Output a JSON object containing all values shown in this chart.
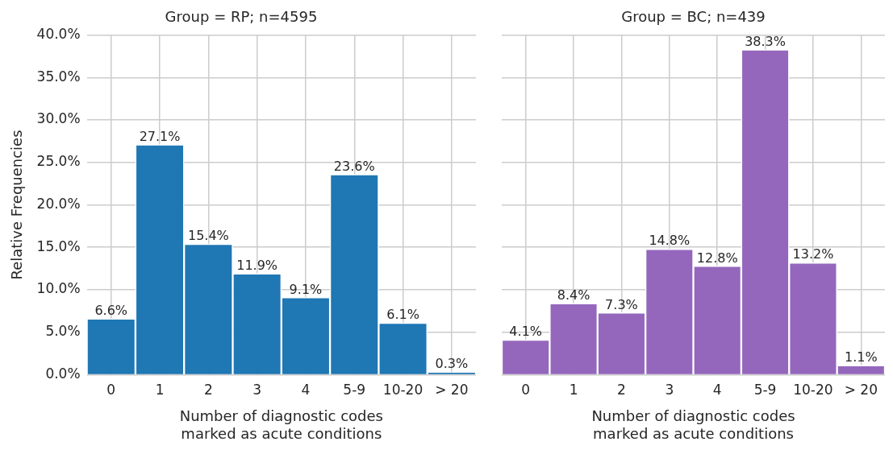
{
  "chart_data": [
    {
      "type": "bar",
      "title": "Group = RP; n=4595",
      "xlabel": "Number of diagnostic codes\nmarked as acute conditions",
      "ylabel": "Relative Frequencies",
      "categories": [
        "0",
        "1",
        "2",
        "3",
        "4",
        "5-9",
        "10-20",
        "> 20"
      ],
      "values": [
        6.6,
        27.1,
        15.4,
        11.9,
        9.1,
        23.6,
        6.1,
        0.3
      ],
      "color": "#1f77b4",
      "value_labels": [
        "6.6%",
        "27.1%",
        "15.4%",
        "11.9%",
        "9.1%",
        "23.6%",
        "6.1%",
        "0.3%"
      ],
      "ylim": [
        0,
        40
      ],
      "yticks": [
        {
          "value": 0,
          "label": "0.0%"
        },
        {
          "value": 5,
          "label": "5.0%"
        },
        {
          "value": 10,
          "label": "10.0%"
        },
        {
          "value": 15,
          "label": "15.0%"
        },
        {
          "value": 20,
          "label": "20.0%"
        },
        {
          "value": 25,
          "label": "25.0%"
        },
        {
          "value": 30,
          "label": "30.0%"
        },
        {
          "value": 35,
          "label": "35.0%"
        },
        {
          "value": 40,
          "label": "40.0%"
        }
      ],
      "grid": true
    },
    {
      "type": "bar",
      "title": "Group = BC; n=439",
      "xlabel": "Number of diagnostic codes\nmarked as acute conditions",
      "categories": [
        "0",
        "1",
        "2",
        "3",
        "4",
        "5-9",
        "10-20",
        "> 20"
      ],
      "values": [
        4.1,
        8.4,
        7.3,
        14.8,
        12.8,
        38.3,
        13.2,
        1.1
      ],
      "color": "#9467bd",
      "value_labels": [
        "4.1%",
        "8.4%",
        "7.3%",
        "14.8%",
        "12.8%",
        "38.3%",
        "13.2%",
        "1.1%"
      ],
      "ylim": [
        0,
        40
      ],
      "yticks": [
        0,
        5,
        10,
        15,
        20,
        25,
        30,
        35,
        40
      ],
      "grid": true,
      "tick_labels": "x"
    }
  ]
}
